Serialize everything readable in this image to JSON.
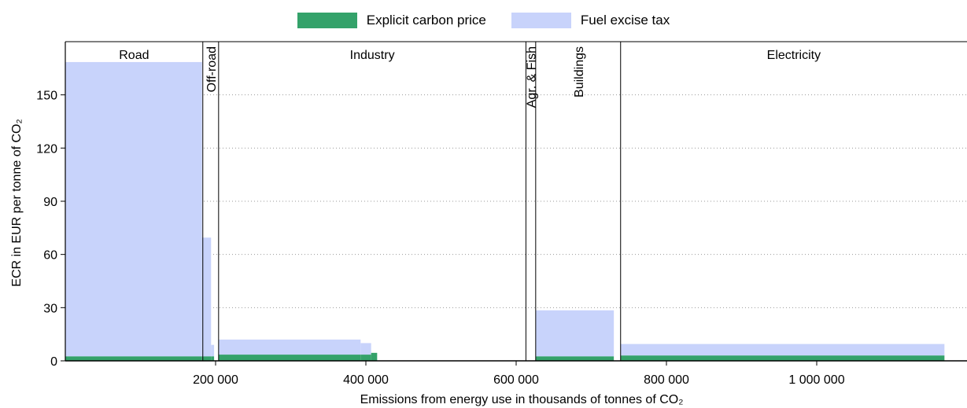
{
  "legend": {
    "items": [
      {
        "label": "Explicit carbon price",
        "color": "#34a26a"
      },
      {
        "label": "Fuel excise tax",
        "color": "#c8d3fb"
      }
    ]
  },
  "axes": {
    "ylabel": "ECR in EUR per tonne of CO₂",
    "xlabel": "Emissions from energy use in thousands of tonnes of CO₂"
  },
  "chart_data": {
    "type": "bar",
    "xlim": [
      0,
      1200000
    ],
    "ylim": [
      0,
      180
    ],
    "yticks": [
      0,
      30,
      60,
      90,
      120,
      150
    ],
    "xticks": [
      200000,
      400000,
      600000,
      800000,
      1000000
    ],
    "xtick_labels": [
      "200 000",
      "400 000",
      "600 000",
      "800 000",
      "1 000 000"
    ],
    "grid": "horizontal dotted",
    "legend_position": "top-center",
    "sectors": [
      {
        "name": "Road",
        "start": 0,
        "end": 183000,
        "orientation": "horizontal"
      },
      {
        "name": "Off-road",
        "start": 183000,
        "end": 204000,
        "orientation": "vertical"
      },
      {
        "name": "Industry",
        "start": 204000,
        "end": 613000,
        "orientation": "horizontal"
      },
      {
        "name": "Agr. & Fish",
        "start": 613000,
        "end": 626000,
        "orientation": "vertical"
      },
      {
        "name": "Buildings",
        "start": 626000,
        "end": 739000,
        "orientation": "vertical"
      },
      {
        "name": "Electricity",
        "start": 739000,
        "end": 1200000,
        "orientation": "horizontal"
      }
    ],
    "series": [
      {
        "name": "Explicit carbon price",
        "blocks": [
          {
            "x0": 0,
            "x1": 182000,
            "value": 2.5
          },
          {
            "x0": 182000,
            "x1": 194000,
            "value": 2.5
          },
          {
            "x0": 194000,
            "x1": 198000,
            "value": 2.5
          },
          {
            "x0": 204000,
            "x1": 393000,
            "value": 3.5
          },
          {
            "x0": 393000,
            "x1": 407000,
            "value": 3.5
          },
          {
            "x0": 407000,
            "x1": 415000,
            "value": 4.5
          },
          {
            "x0": 626000,
            "x1": 730000,
            "value": 2.5
          },
          {
            "x0": 739000,
            "x1": 1170000,
            "value": 3
          }
        ]
      },
      {
        "name": "Fuel excise tax",
        "blocks": [
          {
            "x0": 0,
            "x1": 182000,
            "value": 166
          },
          {
            "x0": 182000,
            "x1": 194000,
            "value": 67
          },
          {
            "x0": 194000,
            "x1": 198000,
            "value": 6.5
          },
          {
            "x0": 204000,
            "x1": 393000,
            "value": 8.5
          },
          {
            "x0": 393000,
            "x1": 407000,
            "value": 6.5
          },
          {
            "x0": 407000,
            "x1": 415000,
            "value": 0
          },
          {
            "x0": 626000,
            "x1": 730000,
            "value": 26
          },
          {
            "x0": 739000,
            "x1": 1170000,
            "value": 6.5
          }
        ]
      }
    ]
  }
}
